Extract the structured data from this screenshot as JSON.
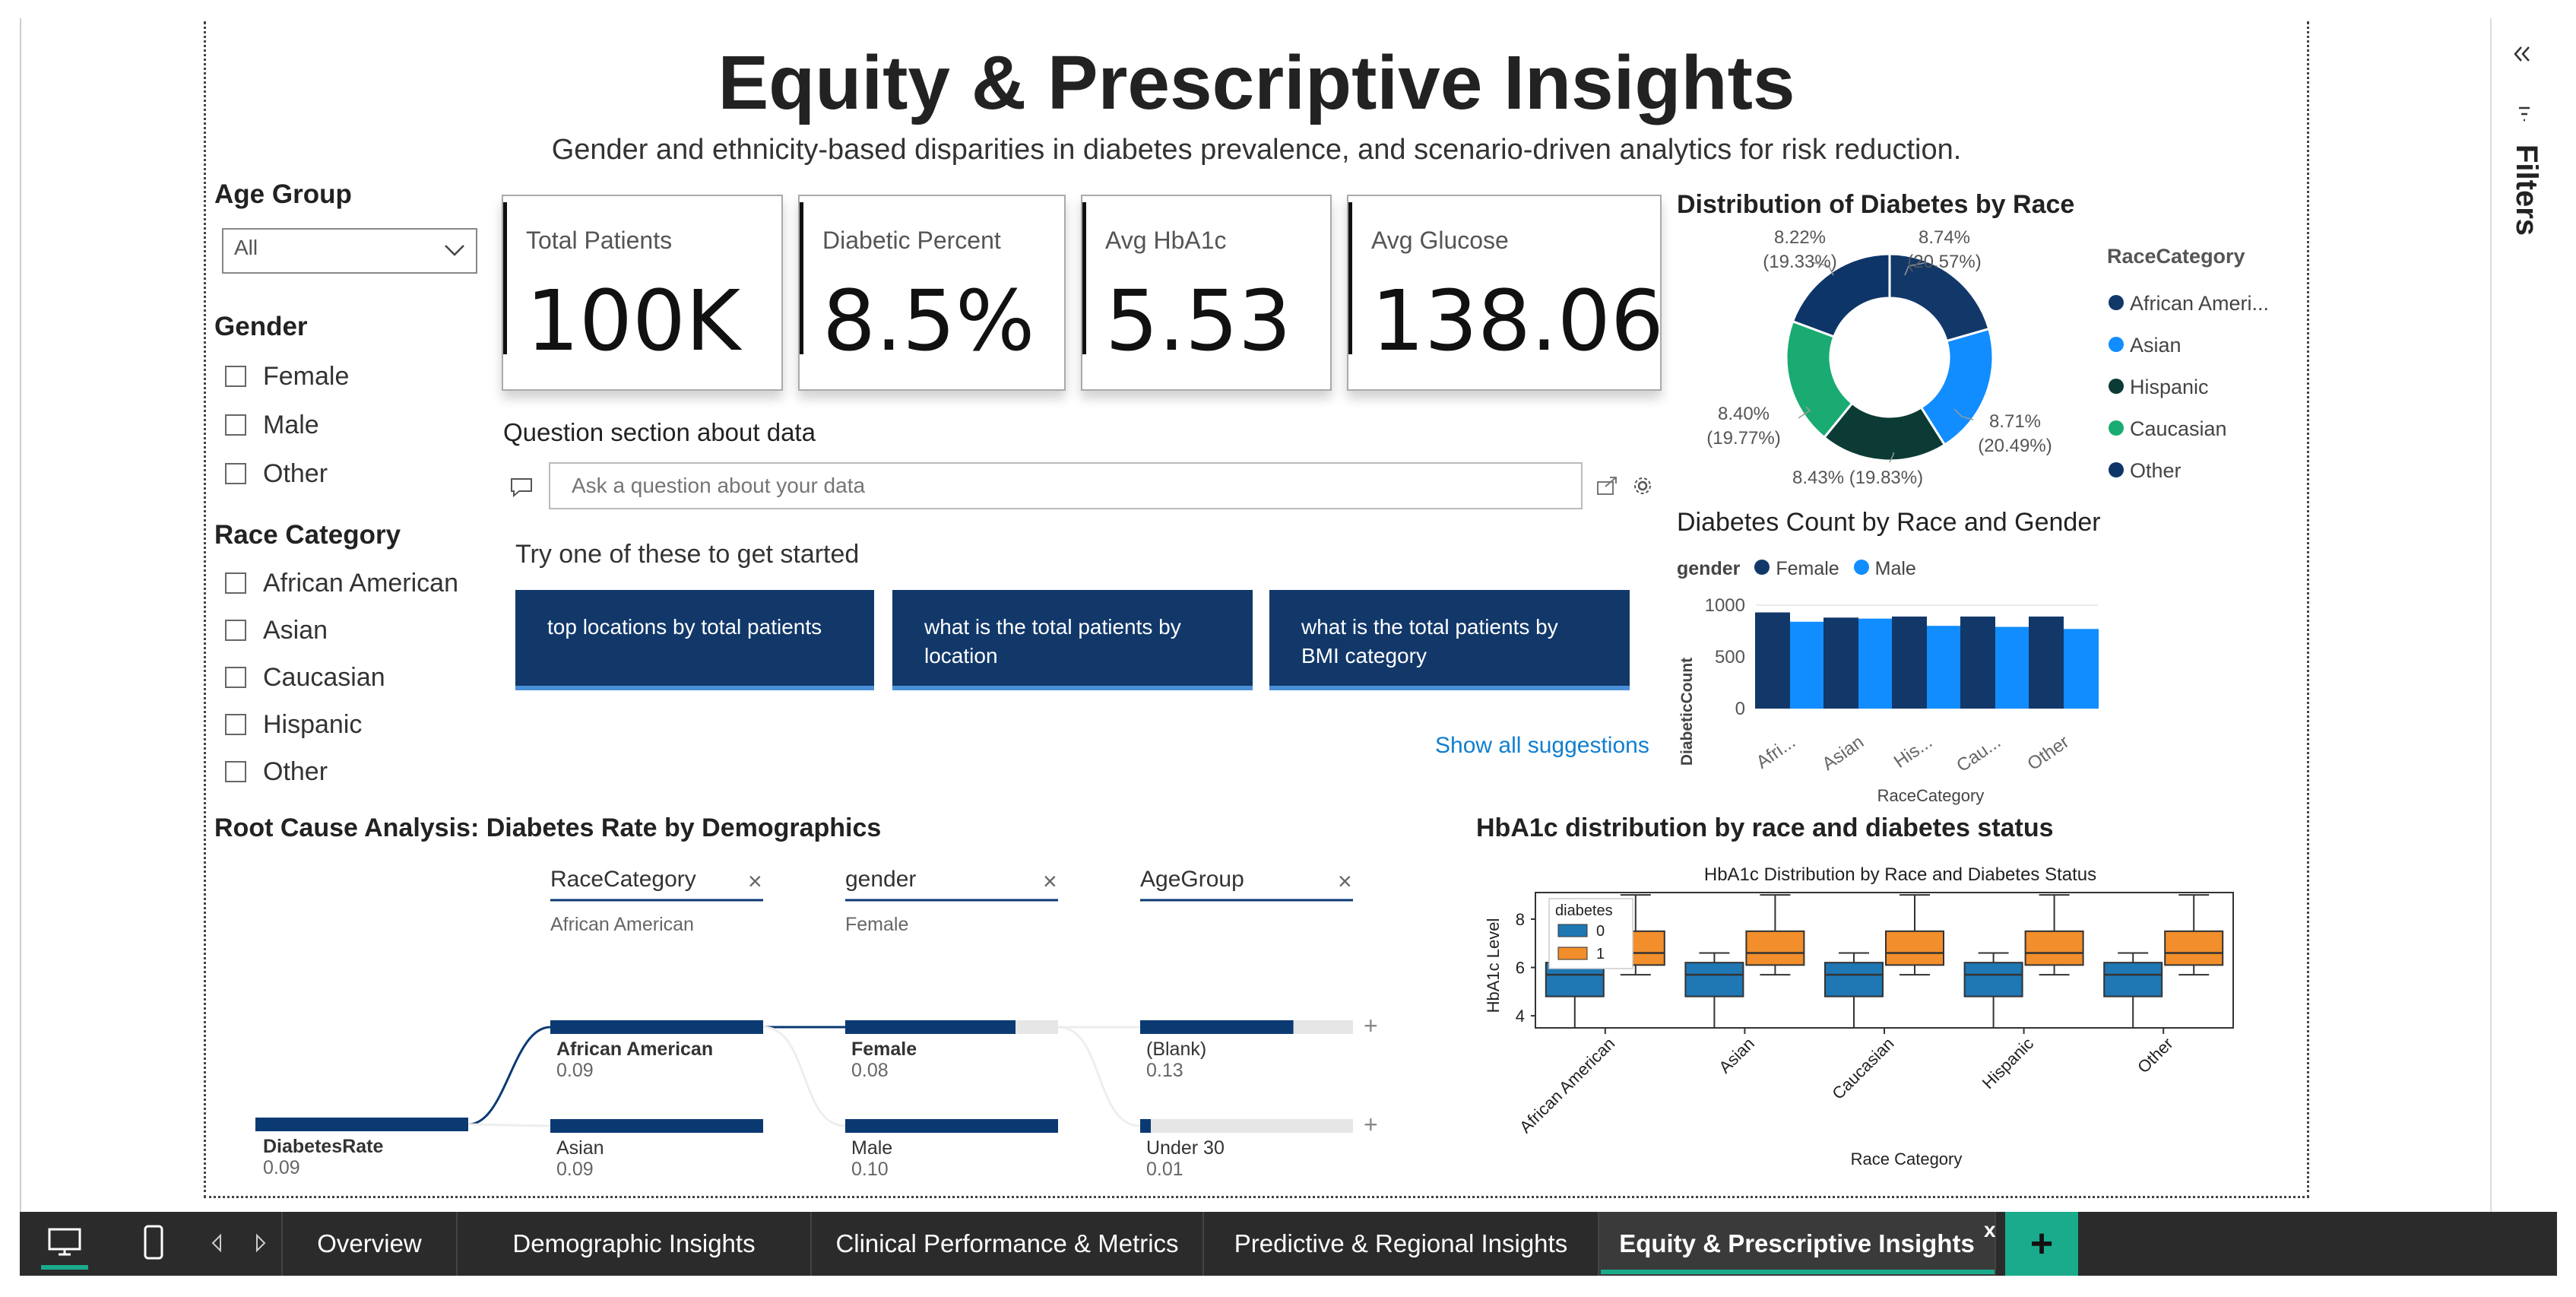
{
  "page": {
    "title": "Equity & Prescriptive Insights",
    "subtitle": "Gender and ethnicity-based disparities in diabetes prevalence, and scenario-driven analytics for risk reduction."
  },
  "slicers": {
    "age_group": {
      "title": "Age Group",
      "selected": "All"
    },
    "gender": {
      "title": "Gender",
      "options": [
        "Female",
        "Male",
        "Other"
      ]
    },
    "race": {
      "title": "Race Category",
      "options": [
        "African American",
        "Asian",
        "Caucasian",
        "Hispanic",
        "Other"
      ]
    }
  },
  "kpis": [
    {
      "label": "Total Patients",
      "value": "100K"
    },
    {
      "label": "Diabetic Percent",
      "value": "8.5%"
    },
    {
      "label": "Avg HbA1c",
      "value": "5.53"
    },
    {
      "label": "Avg Glucose",
      "value": "138.06"
    }
  ],
  "qna": {
    "title": "Question section about data",
    "placeholder": "Ask a question about your data",
    "prompt": "Try one of these to get started",
    "suggestions": [
      "top locations by total patients",
      "what is the total patients by location",
      "what is the total patients by BMI category"
    ],
    "show_all": "Show all suggestions"
  },
  "colors": {
    "navy": "#12386a",
    "dark_blue": "#0b3a73",
    "blue": "#118dff",
    "teal": "#1aab73",
    "dark_green": "#0b3b34",
    "orange": "#f28e2b",
    "box_blue": "#1f77b4"
  },
  "chart_data": [
    {
      "type": "pie",
      "title": "Distribution of Diabetes by Race",
      "legend_title": "RaceCategory",
      "legend": [
        "African Ameri...",
        "Asian",
        "Hispanic",
        "Caucasian",
        "Other"
      ],
      "slices": [
        {
          "name": "African American",
          "value": 8.74,
          "pct_label": "(20.57%)",
          "value_label": "8.74%",
          "color": "#12386a"
        },
        {
          "name": "Asian",
          "value": 8.71,
          "pct_label": "(20.49%)",
          "value_label": "8.71%",
          "color": "#118dff"
        },
        {
          "name": "Hispanic",
          "value": 8.43,
          "pct_label": "(19.83%)",
          "value_label": "8.43%",
          "color": "#0b3b34"
        },
        {
          "name": "Caucasian",
          "value": 8.4,
          "pct_label": "(19.77%)",
          "value_label": "8.40%",
          "color": "#1aab73"
        },
        {
          "name": "Other",
          "value": 8.22,
          "pct_label": "(19.33%)",
          "value_label": "8.22%",
          "color": "#0e3568"
        }
      ],
      "slice_label_texts": [
        "8.74%",
        "(20.57%)",
        "8.71%",
        "(20.49%)",
        "8.43% (19.83%)",
        "8.40%",
        "(19.77%)",
        "8.22%",
        "(19.33%)"
      ]
    },
    {
      "type": "bar",
      "title": "Diabetes Count by Race and Gender",
      "legend_title": "gender",
      "categories": [
        "Afri...",
        "Asian",
        "His...",
        "Cau...",
        "Other"
      ],
      "series": [
        {
          "name": "Female",
          "values": [
            930,
            880,
            890,
            890,
            890
          ],
          "color": "#12386a"
        },
        {
          "name": "Male",
          "values": [
            840,
            870,
            800,
            790,
            770
          ],
          "color": "#118dff"
        }
      ],
      "ylabel": "DiabeticCount",
      "xlabel": "RaceCategory",
      "ylim": [
        0,
        1000
      ],
      "yticks": [
        "1000",
        "500",
        "0"
      ]
    },
    {
      "type": "box",
      "title": "HbA1c distribution by race and diabetes status",
      "inner_title": "HbA1c Distribution by Race and Diabetes Status",
      "categories": [
        "African American",
        "Asian",
        "Caucasian",
        "Hispanic",
        "Other"
      ],
      "ylabel": "HbA1c Level",
      "xlabel": "Race Category",
      "ylim": [
        3.5,
        9.1
      ],
      "yticks": [
        "8",
        "6",
        "4"
      ],
      "legend_title": "diabetes",
      "legend": [
        "0",
        "1"
      ],
      "series": [
        {
          "name": "0",
          "color": "#1f77b4",
          "whisker_low": 3.5,
          "q1": 4.8,
          "median": 5.7,
          "q3": 6.2,
          "whisker_high": 6.6
        },
        {
          "name": "1",
          "color": "#f28e2b",
          "whisker_low": 5.7,
          "q1": 6.1,
          "median": 6.6,
          "q3": 7.5,
          "whisker_high": 9.0
        }
      ]
    }
  ],
  "decomposition": {
    "title": "Root Cause Analysis: Diabetes Rate by Demographics",
    "levels": [
      {
        "header": "RaceCategory",
        "sub": "African American"
      },
      {
        "header": "gender",
        "sub": "Female"
      },
      {
        "header": "AgeGroup",
        "sub": ""
      }
    ],
    "root": {
      "label": "DiabetesRate",
      "value": "0.09"
    },
    "nodes": [
      [
        {
          "label": "African American",
          "value": "0.09",
          "fill": 1.0,
          "selected": true
        },
        {
          "label": "Asian",
          "value": "0.09",
          "fill": 1.0,
          "selected": false
        }
      ],
      [
        {
          "label": "Female",
          "value": "0.08",
          "fill": 0.8,
          "selected": true
        },
        {
          "label": "Male",
          "value": "0.10",
          "fill": 1.0,
          "selected": false
        }
      ],
      [
        {
          "label": "(Blank)",
          "value": "0.13",
          "fill": 0.72,
          "selected": false
        },
        {
          "label": "Under 30",
          "value": "0.01",
          "fill": 0.05,
          "selected": false
        }
      ]
    ]
  },
  "tabs": {
    "items": [
      "Overview",
      "Demographic Insights",
      "Clinical Performance & Metrics",
      "Predictive & Regional Insights",
      "Equity & Prescriptive Insights"
    ],
    "active": "Equity & Prescriptive Insights",
    "close": "x",
    "add": "+"
  },
  "filters_pane": {
    "label": "Filters"
  }
}
